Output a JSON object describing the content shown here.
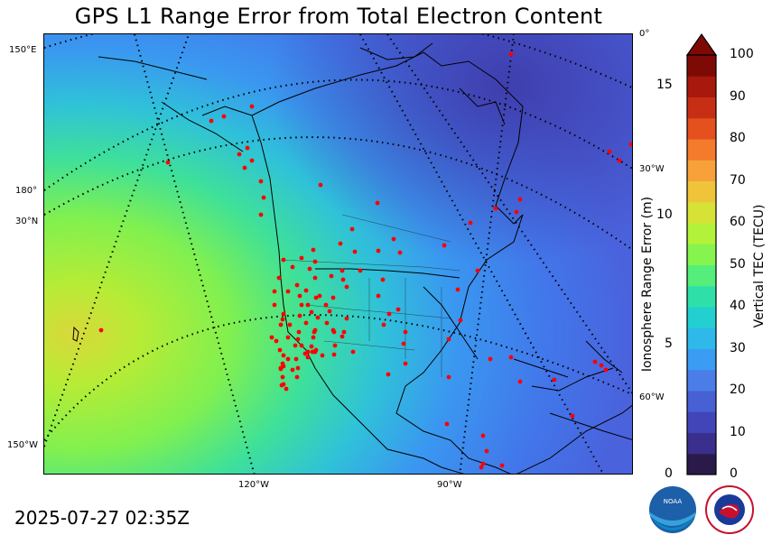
{
  "title": "GPS L1 Range Error from Total Electron Content",
  "timestamp": "2025-07-27 02:35Z",
  "map": {
    "left_labels": [
      "150°E",
      "180°",
      "30°N",
      "150°W"
    ],
    "right_labels": [
      "0°",
      "30°W",
      "60°W"
    ],
    "bottom_labels": [
      "120°W",
      "90°W"
    ],
    "station_color": "#ff0000"
  },
  "colorbar": {
    "left_axis_label": "Ionosphere Range Error (m)",
    "right_axis_label": "Vertical TEC (TECU)",
    "left_ticks": [
      "0",
      "5",
      "10",
      "15"
    ],
    "right_ticks": [
      "0",
      "10",
      "20",
      "30",
      "40",
      "50",
      "60",
      "70",
      "80",
      "90",
      "100"
    ],
    "range_tecu": [
      0,
      100
    ],
    "range_m": [
      0,
      16.2
    ],
    "colors": [
      "#2a1a4a",
      "#3a2f8c",
      "#4145b8",
      "#4760d4",
      "#4a7de8",
      "#3a9cf2",
      "#2fb8ea",
      "#23cfd0",
      "#2ee0a8",
      "#55ee7a",
      "#86f44e",
      "#b2f23a",
      "#d6e236",
      "#efc43a",
      "#f8a03a",
      "#f47a2c",
      "#e4501e",
      "#c82e14",
      "#a8180c",
      "#7e0a06"
    ]
  },
  "logos": {
    "noaa": "NOAA",
    "nws": "NATIONAL WEATHER SERVICE"
  }
}
